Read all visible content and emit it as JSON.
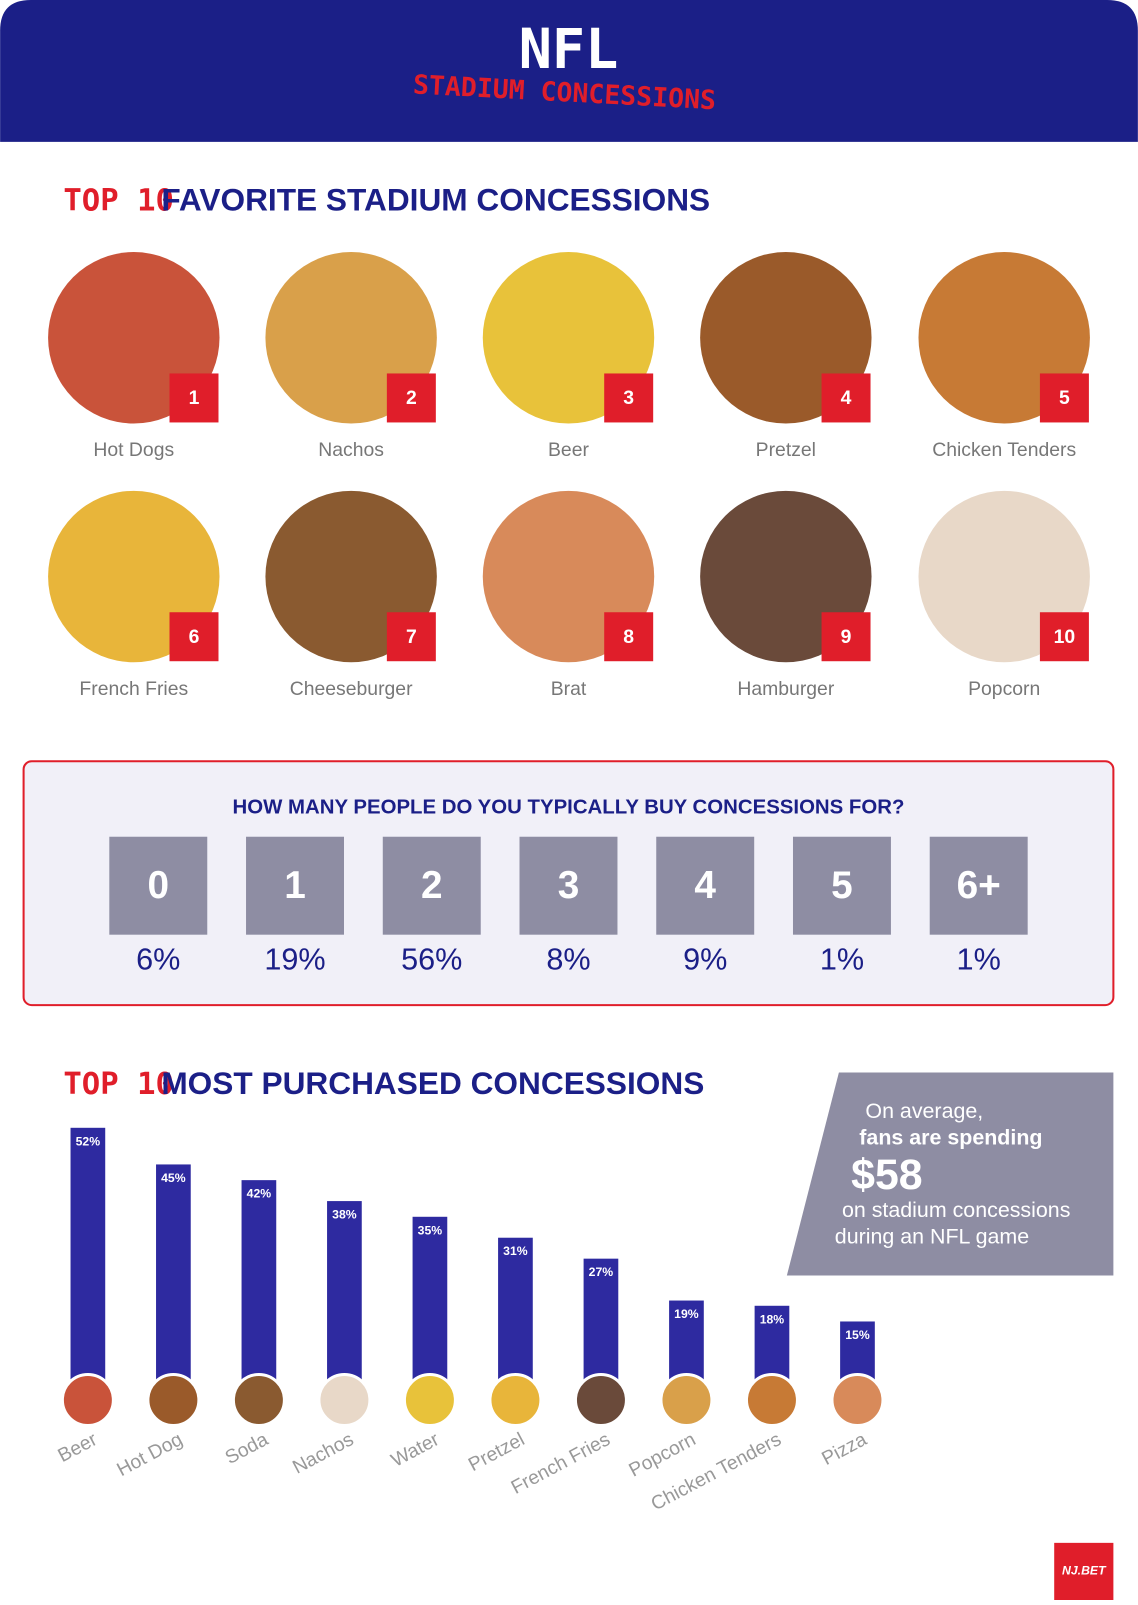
{
  "header": {
    "title": "NFL",
    "subtitle": "STADIUM CONCESSIONS"
  },
  "favorites": {
    "tag": "TOP 10",
    "title": "FAVORITE STADIUM CONCESSIONS",
    "items": [
      {
        "rank": "1",
        "name": "Hot Dogs"
      },
      {
        "rank": "2",
        "name": "Nachos"
      },
      {
        "rank": "3",
        "name": "Beer"
      },
      {
        "rank": "4",
        "name": "Pretzel"
      },
      {
        "rank": "5",
        "name": "Chicken Tenders"
      },
      {
        "rank": "6",
        "name": "French Fries"
      },
      {
        "rank": "7",
        "name": "Cheeseburger"
      },
      {
        "rank": "8",
        "name": "Brat"
      },
      {
        "rank": "9",
        "name": "Hamburger"
      },
      {
        "rank": "10",
        "name": "Popcorn"
      }
    ]
  },
  "survey": {
    "question": "HOW MANY PEOPLE DO YOU TYPICALLY BUY CONCESSIONS FOR?",
    "options": [
      {
        "label": "0",
        "share": "6%"
      },
      {
        "label": "1",
        "share": "19%"
      },
      {
        "label": "2",
        "share": "56%"
      },
      {
        "label": "3",
        "share": "8%"
      },
      {
        "label": "4",
        "share": "9%"
      },
      {
        "label": "5",
        "share": "1%"
      },
      {
        "label": "6+",
        "share": "1%"
      }
    ]
  },
  "purchased": {
    "tag": "TOP 10",
    "title": "MOST PURCHASED CONCESSIONS"
  },
  "chart_data": {
    "type": "bar",
    "categories": [
      "Beer",
      "Hot Dog",
      "Soda",
      "Nachos",
      "Water",
      "Pretzel",
      "French Fries",
      "Popcorn",
      "Chicken Tenders",
      "Pizza"
    ],
    "values": [
      52,
      45,
      42,
      38,
      35,
      31,
      27,
      19,
      18,
      15
    ],
    "value_labels": [
      "52%",
      "45%",
      "42%",
      "38%",
      "35%",
      "31%",
      "27%",
      "19%",
      "18%",
      "15%"
    ],
    "color": "#2e2aa0"
  },
  "callout": {
    "line1": "On average,",
    "line2": "fans are spending",
    "amount": "$58",
    "line3": "on stadium concessions",
    "line4": "during an NFL game"
  },
  "logo": "NJ.BET"
}
